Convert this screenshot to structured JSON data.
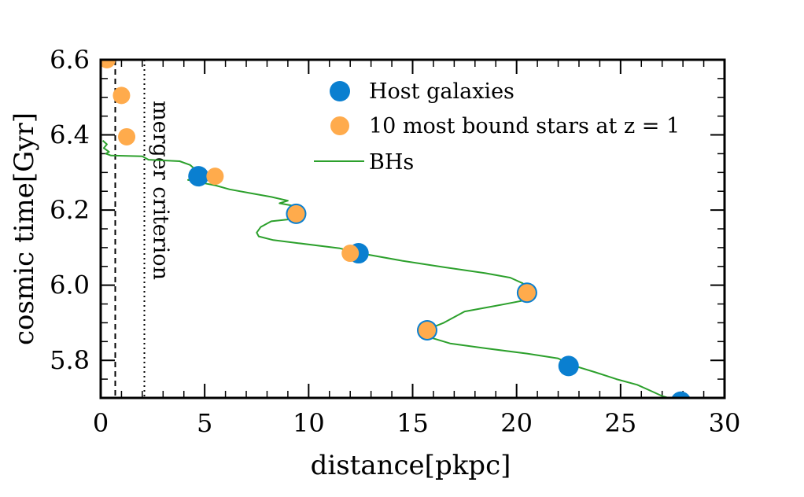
{
  "chart_data": {
    "type": "scatter",
    "xlabel": "distance[pkpc]",
    "ylabel": "cosmic time[Gyr]",
    "xlim": [
      0,
      30
    ],
    "ylim": [
      5.7,
      6.6
    ],
    "xticks": [
      0,
      5,
      10,
      15,
      20,
      25,
      30
    ],
    "xtick_labels": [
      "0",
      "5",
      "10",
      "15",
      "20",
      "25",
      "30"
    ],
    "yticks": [
      5.8,
      6.0,
      6.2,
      6.4,
      6.6
    ],
    "ytick_labels": [
      "5.8",
      "6.0",
      "6.2",
      "6.4",
      "6.6"
    ],
    "legend_position": "top-center",
    "series": [
      {
        "name": "Host galaxies",
        "marker": "circle",
        "color": "#0a7fd0",
        "points": [
          {
            "x": 4.7,
            "y": 6.29
          },
          {
            "x": 9.4,
            "y": 6.19
          },
          {
            "x": 12.4,
            "y": 6.085
          },
          {
            "x": 20.5,
            "y": 5.98
          },
          {
            "x": 15.7,
            "y": 5.88
          },
          {
            "x": 22.5,
            "y": 5.785
          },
          {
            "x": 27.9,
            "y": 5.69
          }
        ]
      },
      {
        "name": "10 most bound stars at z = 1",
        "marker": "circle",
        "color": "#ffab4c",
        "points": [
          {
            "x": 0.3,
            "y": 6.6
          },
          {
            "x": 1.0,
            "y": 6.505
          },
          {
            "x": 1.25,
            "y": 6.395
          },
          {
            "x": 5.5,
            "y": 6.29
          },
          {
            "x": 9.4,
            "y": 6.19
          },
          {
            "x": 12.0,
            "y": 6.085
          },
          {
            "x": 20.5,
            "y": 5.98
          },
          {
            "x": 15.7,
            "y": 5.88
          }
        ]
      },
      {
        "name": "BHs",
        "marker": "line",
        "color": "#2ca02c",
        "points": [
          {
            "x": 0.1,
            "y": 6.385
          },
          {
            "x": 0.3,
            "y": 6.375
          },
          {
            "x": 0.15,
            "y": 6.365
          },
          {
            "x": 0.4,
            "y": 6.355
          },
          {
            "x": 0.25,
            "y": 6.35
          },
          {
            "x": 0.5,
            "y": 6.345
          },
          {
            "x": 2.0,
            "y": 6.343
          },
          {
            "x": 2.3,
            "y": 6.334
          },
          {
            "x": 3.8,
            "y": 6.33
          },
          {
            "x": 4.3,
            "y": 6.32
          },
          {
            "x": 4.6,
            "y": 6.305
          },
          {
            "x": 5.2,
            "y": 6.29
          },
          {
            "x": 5.6,
            "y": 6.29
          },
          {
            "x": 4.5,
            "y": 6.284
          },
          {
            "x": 4.2,
            "y": 6.28
          },
          {
            "x": 4.6,
            "y": 6.278
          },
          {
            "x": 4.9,
            "y": 6.272
          },
          {
            "x": 5.5,
            "y": 6.266
          },
          {
            "x": 6.2,
            "y": 6.255
          },
          {
            "x": 7.2,
            "y": 6.245
          },
          {
            "x": 8.2,
            "y": 6.235
          },
          {
            "x": 9.0,
            "y": 6.225
          },
          {
            "x": 8.6,
            "y": 6.218
          },
          {
            "x": 9.2,
            "y": 6.212
          },
          {
            "x": 9.7,
            "y": 6.2
          },
          {
            "x": 9.5,
            "y": 6.185
          },
          {
            "x": 9.0,
            "y": 6.175
          },
          {
            "x": 8.2,
            "y": 6.17
          },
          {
            "x": 7.7,
            "y": 6.155
          },
          {
            "x": 7.5,
            "y": 6.14
          },
          {
            "x": 7.6,
            "y": 6.13
          },
          {
            "x": 8.3,
            "y": 6.12
          },
          {
            "x": 9.5,
            "y": 6.112
          },
          {
            "x": 11.5,
            "y": 6.098
          },
          {
            "x": 12.5,
            "y": 6.085
          },
          {
            "x": 14.5,
            "y": 6.065
          },
          {
            "x": 16.5,
            "y": 6.048
          },
          {
            "x": 18.5,
            "y": 6.032
          },
          {
            "x": 19.7,
            "y": 6.02
          },
          {
            "x": 20.3,
            "y": 6.005
          },
          {
            "x": 20.5,
            "y": 5.99
          },
          {
            "x": 20.2,
            "y": 5.975
          },
          {
            "x": 20.7,
            "y": 5.963
          },
          {
            "x": 19.0,
            "y": 5.945
          },
          {
            "x": 17.5,
            "y": 5.93
          },
          {
            "x": 17.0,
            "y": 5.915
          },
          {
            "x": 16.5,
            "y": 5.9
          },
          {
            "x": 15.6,
            "y": 5.88
          },
          {
            "x": 15.9,
            "y": 5.86
          },
          {
            "x": 16.8,
            "y": 5.845
          },
          {
            "x": 18.5,
            "y": 5.832
          },
          {
            "x": 20.5,
            "y": 5.818
          },
          {
            "x": 22.0,
            "y": 5.805
          },
          {
            "x": 22.8,
            "y": 5.785
          },
          {
            "x": 23.8,
            "y": 5.768
          },
          {
            "x": 24.8,
            "y": 5.75
          },
          {
            "x": 25.8,
            "y": 5.735
          },
          {
            "x": 26.4,
            "y": 5.72
          },
          {
            "x": 27.0,
            "y": 5.705
          },
          {
            "x": 27.3,
            "y": 5.7
          }
        ]
      }
    ],
    "annotations": [
      {
        "type": "vline",
        "x": 0.7,
        "style": "dashed",
        "label": ""
      },
      {
        "type": "vline",
        "x": 2.1,
        "style": "dotted",
        "label": "merger criterion"
      }
    ]
  }
}
